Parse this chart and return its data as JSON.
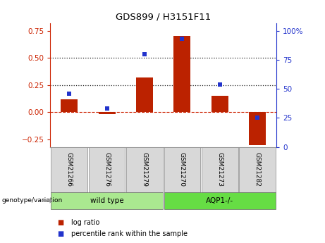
{
  "title": "GDS899 / H3151F11",
  "samples": [
    "GSM21266",
    "GSM21276",
    "GSM21279",
    "GSM21270",
    "GSM21273",
    "GSM21282"
  ],
  "log_ratio": [
    0.12,
    -0.02,
    0.32,
    0.7,
    0.15,
    -0.3
  ],
  "percentile_rank": [
    0.46,
    0.33,
    0.8,
    0.93,
    0.54,
    0.25
  ],
  "groups": [
    {
      "label": "wild type",
      "samples_idx": [
        0,
        1,
        2
      ],
      "color": "#aae890"
    },
    {
      "label": "AQP1-/-",
      "samples_idx": [
        3,
        4,
        5
      ],
      "color": "#66dd44"
    }
  ],
  "bar_color": "#bb2200",
  "point_color": "#2233cc",
  "left_axis_color": "#cc2200",
  "right_axis_color": "#2233cc",
  "ylim_left": [
    -0.32,
    0.82
  ],
  "ylim_right": [
    0.0,
    1.066
  ],
  "yticks_left": [
    -0.25,
    0.0,
    0.25,
    0.5,
    0.75
  ],
  "yticks_right_vals": [
    0.0,
    0.25,
    0.5,
    0.75,
    1.0
  ],
  "yticks_right_labels": [
    "0",
    "25",
    "50",
    "75",
    "100%"
  ],
  "hlines": [
    0.25,
    0.5
  ],
  "hline_zero_color": "#cc2200",
  "hline_dotted_color": "#222222",
  "genotype_label": "genotype/variation",
  "legend_log_ratio": "log ratio",
  "legend_percentile": "percentile rank within the sample",
  "bg_color": "#d8d8d8",
  "plot_bg": "#ffffff",
  "bar_width": 0.45
}
